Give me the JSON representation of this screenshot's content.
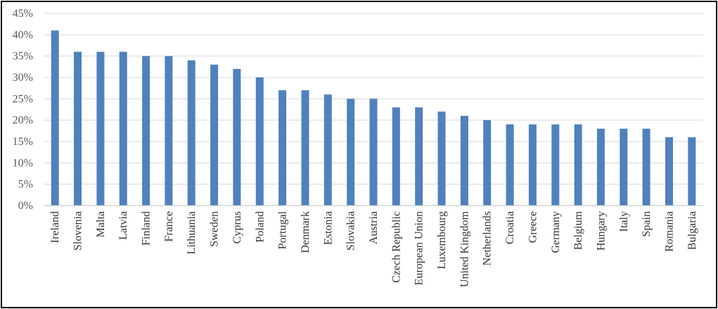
{
  "chart_data": {
    "type": "bar",
    "title": "",
    "xlabel": "",
    "ylabel": "",
    "ylim": [
      0,
      45
    ],
    "y_ticks": [
      0,
      5,
      10,
      15,
      20,
      25,
      30,
      35,
      40,
      45
    ],
    "y_tick_labels": [
      "0%",
      "5%",
      "10%",
      "15%",
      "20%",
      "25%",
      "30%",
      "35%",
      "40%",
      "45%"
    ],
    "grid": true,
    "bar_color": "#4F81BD",
    "categories": [
      "Ireland",
      "Slovenia",
      "Malta",
      "Latvia",
      "Finland",
      "France",
      "Lithuania",
      "Sweden",
      "Cyprus",
      "Poland",
      "Portugal",
      "Denmark",
      "Estonia",
      "Slovakia",
      "Austria",
      "Czech Republic",
      "European Union",
      "Luxembourg",
      "United Kingdom",
      "Netherlands",
      "Croatia",
      "Greece",
      "Germany",
      "Belgium",
      "Hungary",
      "Italy",
      "Spain",
      "Romania",
      "Bulgaria"
    ],
    "values": [
      41,
      36,
      36,
      36,
      35,
      35,
      34,
      33,
      32,
      30,
      27,
      27,
      26,
      25,
      25,
      23,
      23,
      22,
      21,
      20,
      19,
      19,
      19,
      19,
      18,
      18,
      18,
      16,
      16
    ]
  }
}
